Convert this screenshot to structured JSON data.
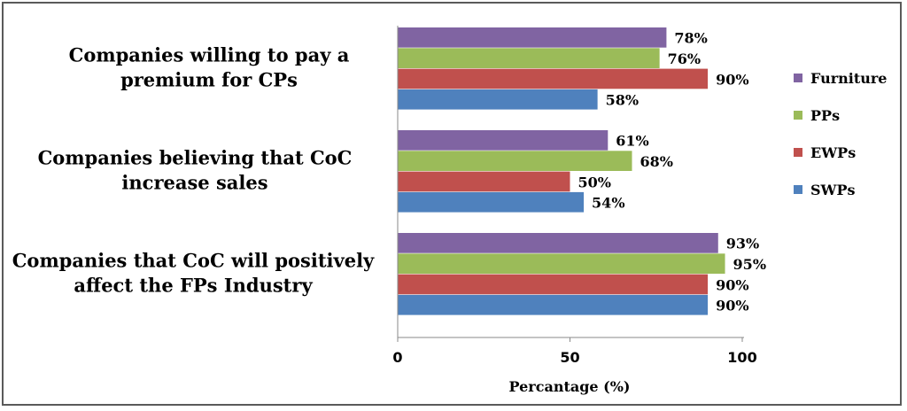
{
  "chart_data": {
    "type": "bar",
    "orientation": "horizontal",
    "categories": [
      [
        "Companies willing to pay a",
        "premium for CPs"
      ],
      [
        "Companies believing that CoC",
        "increase sales"
      ],
      [
        "Companies that CoC will positively",
        "affect the FPs Industry"
      ]
    ],
    "series": [
      {
        "name": "Furniture",
        "color": "#8064A2",
        "values": [
          78,
          61,
          93
        ]
      },
      {
        "name": "PPs",
        "color": "#9BBB59",
        "values": [
          76,
          68,
          95
        ]
      },
      {
        "name": "EWPs",
        "color": "#C0504D",
        "values": [
          90,
          50,
          90
        ]
      },
      {
        "name": "SWPs",
        "color": "#4F81BD",
        "values": [
          58,
          54,
          90
        ]
      }
    ],
    "value_suffix": "%",
    "xlabel": "Percantage (%)",
    "xlim": [
      0,
      100
    ],
    "xticks": [
      0,
      50,
      100
    ],
    "grid": false,
    "legend_position": "right"
  }
}
